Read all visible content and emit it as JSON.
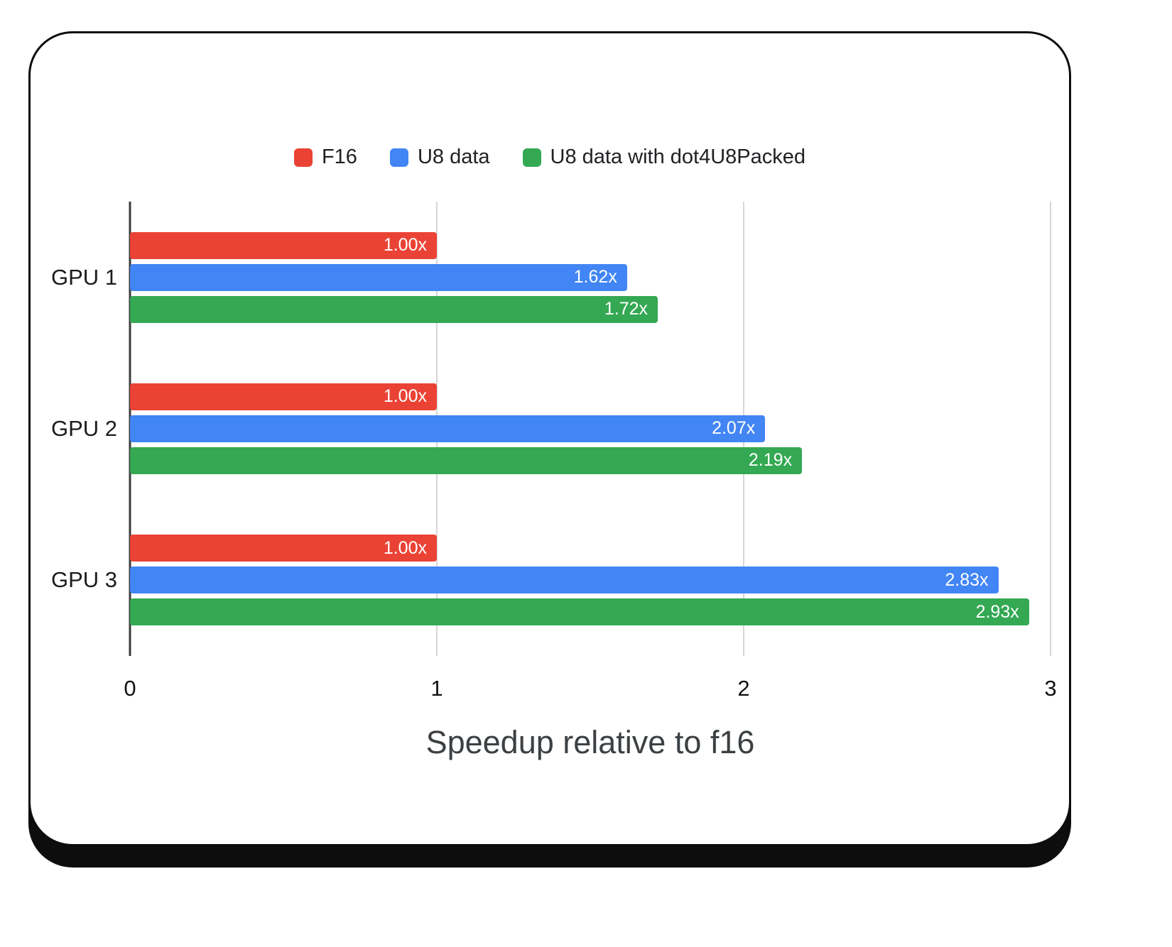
{
  "chart_data": {
    "type": "bar",
    "orientation": "horizontal",
    "title": "",
    "xlabel": "Speedup relative to f16",
    "ylabel": "",
    "categories": [
      "GPU 1",
      "GPU 2",
      "GPU 3"
    ],
    "series": [
      {
        "name": "F16",
        "color": "#ea4335",
        "values": [
          1.0,
          1.0,
          1.0
        ],
        "labels": [
          "1.00x",
          "1.00x",
          "1.00x"
        ]
      },
      {
        "name": "U8 data",
        "color": "#4285f4",
        "values": [
          1.62,
          2.07,
          2.83
        ],
        "labels": [
          "1.62x",
          "2.07x",
          "2.83x"
        ]
      },
      {
        "name": "U8 data with dot4U8Packed",
        "color": "#34a853",
        "values": [
          1.72,
          2.19,
          2.93
        ],
        "labels": [
          "1.72x",
          "2.19x",
          "2.93x"
        ]
      }
    ],
    "xlim": [
      0,
      3
    ],
    "xticks": [
      0,
      1,
      2,
      3
    ],
    "xtick_labels": [
      "0",
      "1",
      "2",
      "3"
    ],
    "grid": "vertical",
    "legend_position": "top"
  }
}
